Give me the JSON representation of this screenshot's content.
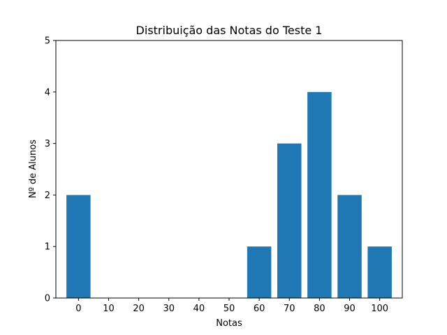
{
  "chart_data": {
    "type": "bar",
    "title": "Distribuição das Notas do Teste 1",
    "xlabel": "Notas",
    "ylabel": "Nº de Alunos",
    "categories": [
      "0",
      "10",
      "20",
      "30",
      "40",
      "50",
      "60",
      "70",
      "80",
      "90",
      "100"
    ],
    "values": [
      2,
      0,
      0,
      0,
      0,
      0,
      1,
      3,
      4,
      2,
      1
    ],
    "ylim": [
      0,
      5
    ],
    "yticks": [
      "0",
      "1",
      "2",
      "3",
      "4",
      "5"
    ],
    "bar_color": "#1f77b4",
    "grid": false,
    "legend": false
  }
}
